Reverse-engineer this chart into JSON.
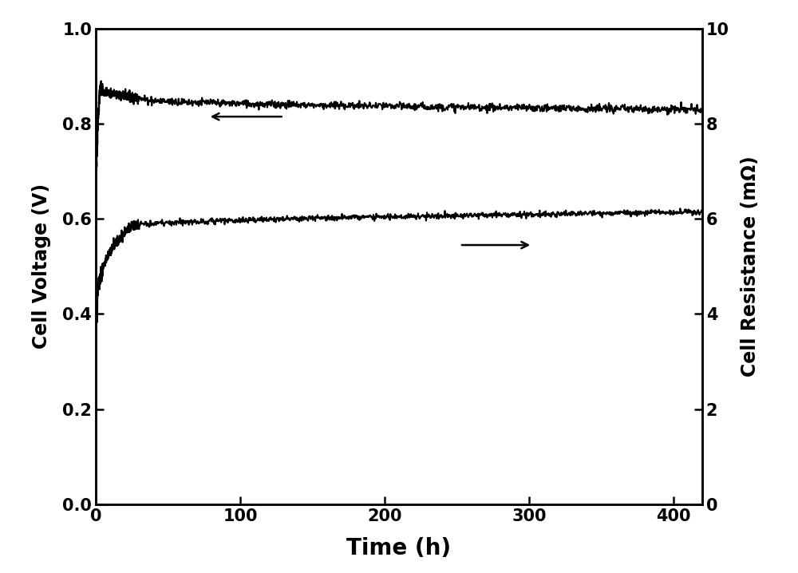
{
  "xlabel": "Time (h)",
  "ylabel_left": "Cell Voltage (V)",
  "ylabel_right": "Cell Resistance (mΩ)",
  "xlim": [
    0,
    420
  ],
  "ylim_left": [
    0.0,
    1.0
  ],
  "ylim_right": [
    0,
    10
  ],
  "xticks": [
    0,
    100,
    200,
    300,
    400
  ],
  "yticks_left": [
    0.0,
    0.2,
    0.4,
    0.6,
    0.8,
    1.0
  ],
  "yticks_right": [
    0,
    2,
    4,
    6,
    8,
    10
  ],
  "background_color": "#ffffff",
  "line_color": "#000000",
  "voltage_start": 0.39,
  "voltage_peak": 0.875,
  "voltage_plateau": 0.855,
  "voltage_end": 0.83,
  "resistance_start": 4.0,
  "resistance_fast_end": 5.85,
  "resistance_end": 6.15,
  "total_time": 420,
  "figsize": [
    10.0,
    7.18
  ],
  "dpi": 100
}
